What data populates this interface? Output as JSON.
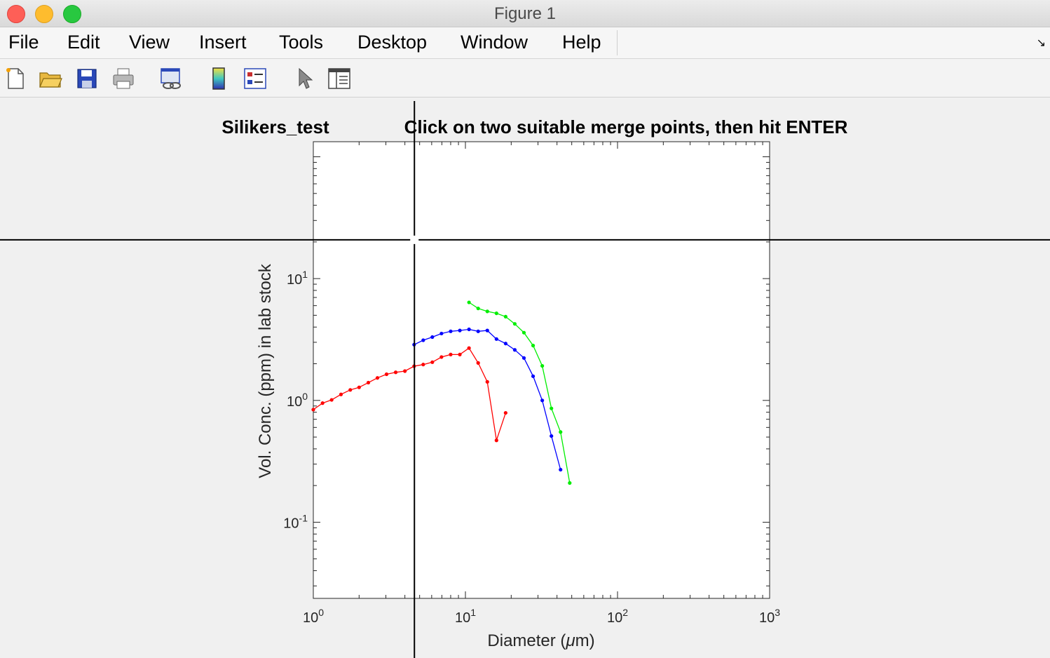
{
  "window": {
    "title": "Figure 1"
  },
  "menu": [
    {
      "id": "file",
      "label": "File"
    },
    {
      "id": "edit",
      "label": "Edit"
    },
    {
      "id": "view",
      "label": "View"
    },
    {
      "id": "insert",
      "label": "Insert"
    },
    {
      "id": "tools",
      "label": "Tools"
    },
    {
      "id": "desktop",
      "label": "Desktop"
    },
    {
      "id": "window",
      "label": "Window"
    },
    {
      "id": "help",
      "label": "Help"
    }
  ],
  "toolbar": [
    {
      "id": "new-figure",
      "icon": "new-file-icon"
    },
    {
      "id": "open-file",
      "icon": "open-folder-icon"
    },
    {
      "id": "save",
      "icon": "save-icon"
    },
    {
      "id": "print",
      "icon": "print-icon"
    },
    {
      "id": "link-plot",
      "icon": "link-plot-icon"
    },
    {
      "id": "insert-colorbar",
      "icon": "colorbar-icon"
    },
    {
      "id": "insert-legend",
      "icon": "legend-icon"
    },
    {
      "id": "edit-plot",
      "icon": "pointer-icon"
    },
    {
      "id": "property-inspector",
      "icon": "panel-icon"
    }
  ],
  "chart_data": {
    "type": "line",
    "title_left": "Silikers_test",
    "title_right": "Click on two suitable merge points, then hit ENTER",
    "xlabel_prefix": "Diameter (",
    "xlabel_mu": "μ",
    "xlabel_suffix": "m)",
    "ylabel": "Vol. Conc. (ppm) in lab stock",
    "xscale": "log",
    "yscale": "log",
    "xlim": [
      1,
      1000
    ],
    "ylim": [
      0.0237,
      133
    ],
    "grid": false,
    "x_ticks": [
      {
        "value": 1,
        "base": "10",
        "exp": "0"
      },
      {
        "value": 10,
        "base": "10",
        "exp": "1"
      },
      {
        "value": 100,
        "base": "10",
        "exp": "2"
      },
      {
        "value": 1000,
        "base": "10",
        "exp": "3"
      }
    ],
    "y_ticks": [
      {
        "value": 0.1,
        "base": "10",
        "exp": "-1"
      },
      {
        "value": 1,
        "base": "10",
        "exp": "0"
      },
      {
        "value": 10,
        "base": "10",
        "exp": "1"
      }
    ],
    "crosshair": {
      "x": 4.62,
      "y": 20.8
    },
    "series": [
      {
        "color": "#ff0000",
        "x": [
          1.0,
          1.15,
          1.32,
          1.52,
          1.75,
          2.0,
          2.3,
          2.64,
          3.03,
          3.48,
          4.0,
          4.6,
          5.28,
          6.06,
          6.96,
          8.0,
          9.19,
          10.56,
          12.13,
          13.93,
          16.0,
          18.38
        ],
        "y": [
          0.84,
          0.95,
          1.01,
          1.12,
          1.22,
          1.28,
          1.4,
          1.53,
          1.64,
          1.7,
          1.74,
          1.91,
          1.97,
          2.06,
          2.27,
          2.38,
          2.38,
          2.69,
          2.03,
          1.42,
          0.47,
          0.79
        ]
      },
      {
        "color": "#0000ff",
        "x": [
          4.6,
          5.28,
          6.06,
          6.96,
          8.0,
          9.19,
          10.56,
          12.13,
          13.93,
          16.0,
          18.38,
          21.11,
          24.25,
          27.86,
          32.0,
          36.76,
          42.22
        ],
        "y": [
          2.87,
          3.12,
          3.31,
          3.54,
          3.69,
          3.75,
          3.83,
          3.69,
          3.75,
          3.19,
          2.93,
          2.6,
          2.23,
          1.58,
          1.0,
          0.51,
          0.27
        ]
      },
      {
        "color": "#00ee00",
        "x": [
          10.56,
          12.13,
          13.93,
          16.0,
          18.38,
          21.11,
          24.25,
          27.86,
          32.0,
          36.76,
          42.22,
          48.5
        ],
        "y": [
          6.38,
          5.69,
          5.38,
          5.19,
          4.87,
          4.25,
          3.6,
          2.82,
          1.92,
          0.86,
          0.55,
          0.21
        ]
      }
    ]
  }
}
